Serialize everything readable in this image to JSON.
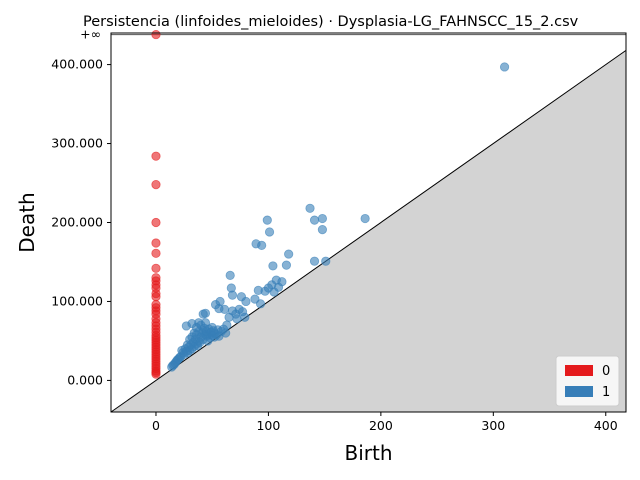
{
  "chart_data": {
    "type": "scatter",
    "title": "Persistencia (linfoides_mieloides) · Dysplasia-LG_FAHNSCC_15_2.csv",
    "xlabel": "Birth",
    "ylabel": "Death",
    "xlim": [
      -40,
      418
    ],
    "ylim": [
      -40,
      440
    ],
    "xticks": [
      0,
      100,
      200,
      300,
      400
    ],
    "yticks": [
      0,
      100000,
      200000,
      300000,
      400000
    ],
    "ytick_labels": [
      "0.000",
      "100.000",
      "200.000",
      "300.000",
      "400.000"
    ],
    "infinity_label": "+∞",
    "infinity_value": 438,
    "diagonal": true,
    "legend": {
      "position": "lower-right",
      "entries": [
        "0",
        "1"
      ]
    },
    "series": [
      {
        "name": "0",
        "color": "#e41a1c",
        "points": [
          [
            0,
            438
          ],
          [
            0,
            284
          ],
          [
            0,
            248
          ],
          [
            0,
            200
          ],
          [
            0,
            174
          ],
          [
            0,
            161
          ],
          [
            0,
            142
          ],
          [
            0,
            130
          ],
          [
            0,
            126
          ],
          [
            0,
            121
          ],
          [
            0,
            117
          ],
          [
            0,
            110
          ],
          [
            0,
            106
          ],
          [
            0,
            96
          ],
          [
            0,
            92
          ],
          [
            0,
            88
          ],
          [
            0,
            84
          ],
          [
            0,
            78
          ],
          [
            0,
            73
          ],
          [
            0,
            69
          ],
          [
            0,
            65
          ],
          [
            0,
            61
          ],
          [
            0,
            57
          ],
          [
            0,
            54
          ],
          [
            0,
            51
          ],
          [
            0,
            48
          ],
          [
            0,
            45
          ],
          [
            0,
            42
          ],
          [
            0,
            39
          ],
          [
            0,
            36
          ],
          [
            0,
            33
          ],
          [
            0,
            30
          ],
          [
            0,
            27
          ],
          [
            0,
            24
          ],
          [
            0,
            21
          ],
          [
            0,
            18
          ],
          [
            0,
            15
          ],
          [
            0,
            12
          ],
          [
            0,
            10
          ],
          [
            0,
            8
          ]
        ]
      },
      {
        "name": "1",
        "color": "#377eb8",
        "points": [
          [
            310,
            397
          ],
          [
            186,
            205
          ],
          [
            148,
            205
          ],
          [
            137,
            218
          ],
          [
            141,
            203
          ],
          [
            148,
            191
          ],
          [
            99,
            203
          ],
          [
            101,
            188
          ],
          [
            89,
            173
          ],
          [
            94,
            171
          ],
          [
            118,
            160
          ],
          [
            116,
            146
          ],
          [
            104,
            145
          ],
          [
            141,
            151
          ],
          [
            151,
            151
          ],
          [
            112,
            125
          ],
          [
            107,
            127
          ],
          [
            103,
            121
          ],
          [
            100,
            117
          ],
          [
            109,
            118
          ],
          [
            105,
            112
          ],
          [
            97,
            113
          ],
          [
            91,
            114
          ],
          [
            93,
            97
          ],
          [
            66,
            133
          ],
          [
            67,
            117
          ],
          [
            68,
            108
          ],
          [
            76,
            106
          ],
          [
            80,
            100
          ],
          [
            88,
            103
          ],
          [
            53,
            96
          ],
          [
            57,
            100
          ],
          [
            56,
            91
          ],
          [
            61,
            90
          ],
          [
            44,
            85
          ],
          [
            42,
            84
          ],
          [
            68,
            88
          ],
          [
            71,
            84
          ],
          [
            74,
            90
          ],
          [
            77,
            87
          ],
          [
            79,
            80
          ],
          [
            72,
            78
          ],
          [
            65,
            80
          ],
          [
            63,
            70
          ],
          [
            58,
            62
          ],
          [
            52,
            60
          ],
          [
            48,
            58
          ],
          [
            45,
            56
          ],
          [
            42,
            63
          ],
          [
            40,
            70
          ],
          [
            38,
            73
          ],
          [
            36,
            67
          ],
          [
            34,
            60
          ],
          [
            32,
            55
          ],
          [
            30,
            52
          ],
          [
            28,
            45
          ],
          [
            26,
            40
          ],
          [
            27,
            69
          ],
          [
            32,
            72
          ],
          [
            44,
            73
          ],
          [
            50,
            67
          ],
          [
            55,
            64
          ],
          [
            38,
            50
          ],
          [
            36,
            46
          ],
          [
            34,
            43
          ],
          [
            32,
            40
          ],
          [
            30,
            38
          ],
          [
            28,
            35
          ],
          [
            25,
            33
          ],
          [
            23,
            38
          ],
          [
            22,
            30
          ],
          [
            20,
            27
          ],
          [
            18,
            24
          ],
          [
            16,
            20
          ],
          [
            14,
            17
          ],
          [
            40,
            55
          ],
          [
            42,
            52
          ],
          [
            44,
            58
          ],
          [
            46,
            50
          ],
          [
            48,
            54
          ],
          [
            50,
            57
          ],
          [
            52,
            55
          ],
          [
            54,
            58
          ],
          [
            56,
            56
          ],
          [
            60,
            65
          ],
          [
            62,
            60
          ],
          [
            36,
            58
          ],
          [
            38,
            62
          ],
          [
            35,
            52
          ],
          [
            39,
            48
          ],
          [
            41,
            60
          ],
          [
            43,
            66
          ],
          [
            45,
            62
          ],
          [
            47,
            65
          ],
          [
            49,
            61
          ],
          [
            51,
            63
          ],
          [
            37,
            44
          ],
          [
            33,
            48
          ],
          [
            31,
            45
          ],
          [
            29,
            42
          ],
          [
            27,
            37
          ],
          [
            24,
            35
          ],
          [
            21,
            29
          ],
          [
            19,
            26
          ],
          [
            17,
            22
          ],
          [
            15,
            19
          ]
        ]
      }
    ]
  }
}
